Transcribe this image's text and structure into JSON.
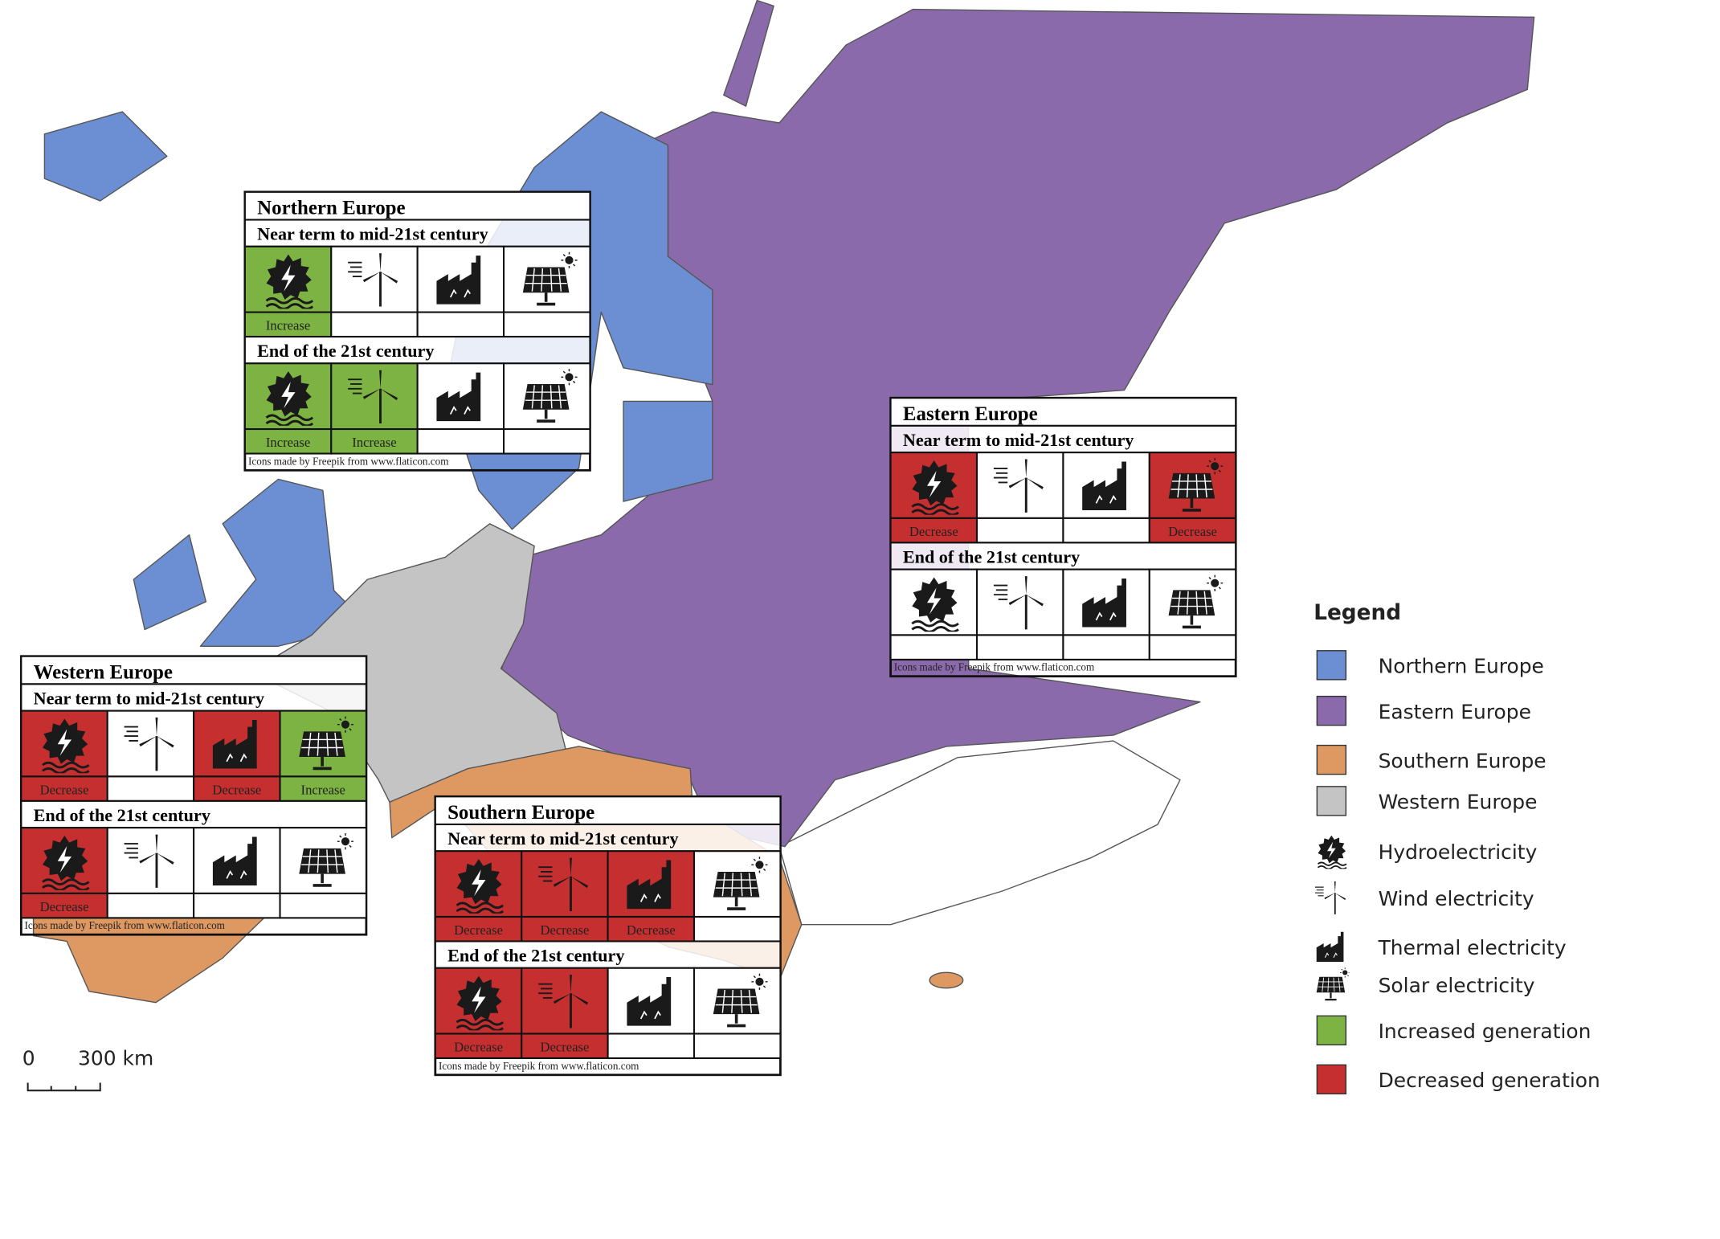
{
  "panels": [
    {
      "title": "Northern Europe",
      "periods": [
        {
          "label": "Near term to mid-21st century",
          "cells": [
            {
              "label": "Increase",
              "color": "#7cb342"
            },
            null,
            null,
            null
          ]
        },
        {
          "label": "End of the 21st century",
          "cells": [
            {
              "label": "Increase",
              "color": "#7cb342"
            },
            {
              "label": "Increase",
              "color": "#7cb342"
            },
            null,
            null
          ]
        }
      ],
      "credit": "Icons made by Freepik from www.flaticon.com"
    },
    {
      "title": "Eastern Europe",
      "periods": [
        {
          "label": "Near term to mid-21st century",
          "cells": [
            {
              "label": "Decrease",
              "color": "#c62f2f"
            },
            null,
            null,
            {
              "label": "Decrease",
              "color": "#c62f2f"
            }
          ]
        },
        {
          "label": "End of the 21st century",
          "cells": [
            null,
            null,
            null,
            null
          ]
        }
      ],
      "credit": "Icons made by Freepik from www.flaticon.com"
    },
    {
      "title": "Western Europe",
      "periods": [
        {
          "label": "Near term to mid-21st century",
          "cells": [
            {
              "label": "Decrease",
              "color": "#c62f2f"
            },
            null,
            {
              "label": "Decrease",
              "color": "#c62f2f"
            },
            {
              "label": "Increase",
              "color": "#7cb342"
            }
          ]
        },
        {
          "label": "End of the 21st century",
          "cells": [
            {
              "label": "Decrease",
              "color": "#c62f2f"
            },
            null,
            null,
            null
          ]
        }
      ],
      "credit": "Icons made by Freepik from www.flaticon.com"
    },
    {
      "title": "Southern Europe",
      "periods": [
        {
          "label": "Near term to mid-21st century",
          "cells": [
            {
              "label": "Decrease",
              "color": "#c62f2f"
            },
            {
              "label": "Decrease",
              "color": "#c62f2f"
            },
            {
              "label": "Decrease",
              "color": "#c62f2f"
            },
            null
          ]
        },
        {
          "label": "End of the 21st century",
          "cells": [
            {
              "label": "Decrease",
              "color": "#c62f2f"
            },
            {
              "label": "Decrease",
              "color": "#c62f2f"
            },
            null,
            null
          ]
        }
      ],
      "credit": "Icons made by Freepik from www.flaticon.com"
    }
  ],
  "legend": {
    "title": "Legend",
    "items": [
      {
        "label": "Northern Europe",
        "color": "#6b8fd2"
      },
      {
        "label": "Eastern Europe",
        "color": "#8a6aab"
      },
      {
        "label": "Southern Europe",
        "color": "#de9862"
      },
      {
        "label": "Western Europe",
        "color": "#c4c4c4"
      },
      {
        "label": "Hydroelectricity",
        "icon": "hydro"
      },
      {
        "label": "Wind electricity",
        "icon": "wind"
      },
      {
        "label": "Thermal electricity",
        "icon": "thermal"
      },
      {
        "label": "Solar electricity",
        "icon": "solar"
      },
      {
        "label": "Increased generation",
        "color": "#7cb342"
      },
      {
        "label": "Decreased generation",
        "color": "#c62f2f"
      }
    ]
  },
  "scale": {
    "labels": [
      "0",
      "300 km"
    ]
  }
}
